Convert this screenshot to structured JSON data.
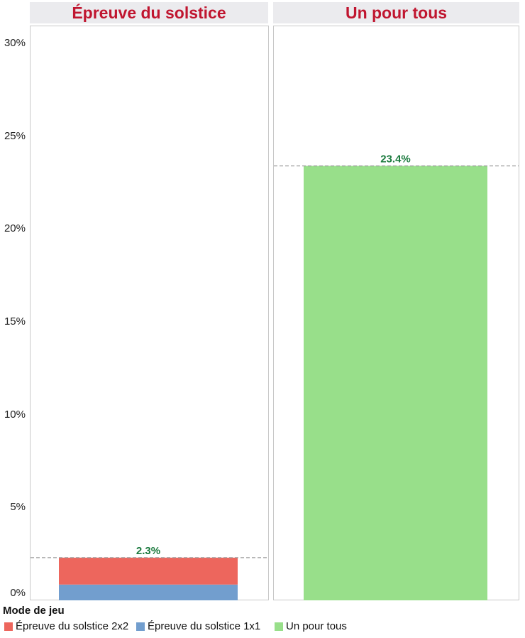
{
  "chart_data": {
    "type": "bar",
    "stacked": true,
    "ylim": [
      0,
      30
    ],
    "yticks": [
      "0%",
      "5%",
      "10%",
      "15%",
      "20%",
      "25%",
      "30%"
    ],
    "panels": [
      {
        "title": "Épreuve du solstice",
        "total_label": "2.3%",
        "segments": [
          {
            "name": "Épreuve du solstice 1x1",
            "value": 0.85,
            "color": "#729ece"
          },
          {
            "name": "Épreuve du solstice 2x2",
            "value": 1.45,
            "color": "#ed665d"
          }
        ]
      },
      {
        "title": "Un pour tous",
        "total_label": "23.4%",
        "segments": [
          {
            "name": "Un pour tous",
            "value": 23.4,
            "color": "#98df8a"
          }
        ]
      }
    ],
    "reference_lines": "dashed gray at each panel total",
    "label_color": "#1b7a3e",
    "legend": {
      "title": "Mode de jeu",
      "position": "bottom-left",
      "items": [
        {
          "label": "Épreuve du solstice 2x2",
          "color": "#ed665d"
        },
        {
          "label": "Épreuve du solstice 1x1",
          "color": "#729ece"
        },
        {
          "label": "Un pour tous",
          "color": "#98df8a"
        }
      ]
    },
    "grid": false
  }
}
